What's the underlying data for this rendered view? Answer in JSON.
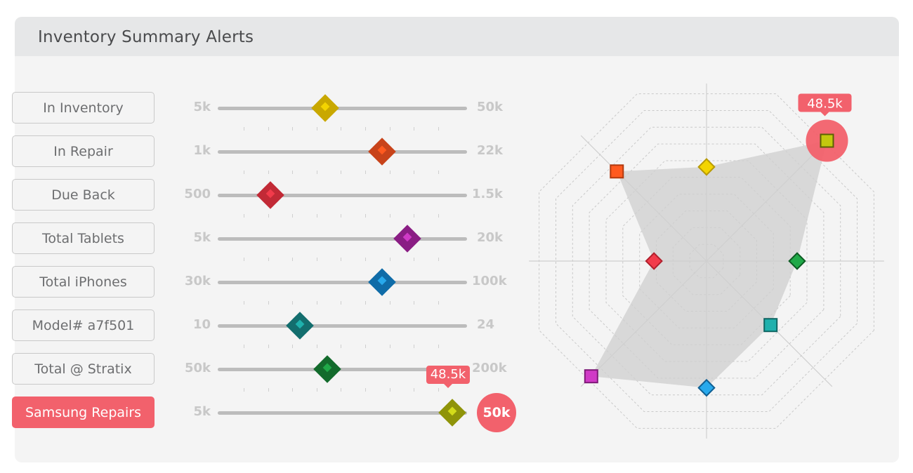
{
  "title": "Inventory Summary Alerts",
  "sliders": [
    {
      "label": "In Inventory",
      "min": "5k",
      "max": "50k",
      "value_fraction": 0.43,
      "color": "#c9a800",
      "inner": "#f3d400",
      "active": false
    },
    {
      "label": "In Repair",
      "min": "1k",
      "max": "22k",
      "value_fraction": 0.66,
      "color": "#c8431a",
      "inner": "#ff5a1f",
      "active": false
    },
    {
      "label": "Due Back",
      "min": "500",
      "max": "1.5k",
      "value_fraction": 0.21,
      "color": "#c22a36",
      "inner": "#f23b4b",
      "active": false
    },
    {
      "label": "Total Tablets",
      "min": "5k",
      "max": "20k",
      "value_fraction": 0.76,
      "color": "#8a1d84",
      "inner": "#d03ac6",
      "active": false
    },
    {
      "label": "Total iPhones",
      "min": "30k",
      "max": "100k",
      "value_fraction": 0.66,
      "color": "#0f6ca8",
      "inner": "#28a9ec",
      "active": false
    },
    {
      "label": "Model# a7f501",
      "min": "10",
      "max": "24",
      "value_fraction": 0.33,
      "color": "#136e6e",
      "inner": "#1fb1ad",
      "active": false
    },
    {
      "label": "Total @ Stratix",
      "min": "50k",
      "max": "200k",
      "value_fraction": 0.44,
      "color": "#136b2c",
      "inner": "#20a948",
      "active": false
    },
    {
      "label": "Samsung Repairs",
      "min": "5k",
      "max": "50k",
      "value_fraction": 0.94,
      "color": "#8f9409",
      "inner": "#d4dc1a",
      "active": true,
      "tooltip": "48.5k",
      "max_badge": "50k"
    }
  ],
  "radar": {
    "tooltip": "48.5k",
    "rings": 10,
    "points": [
      {
        "name": "samsung-repairs",
        "shape": "square",
        "r": 0.94,
        "angle": -45,
        "color": "#c3c80f",
        "border": "#5c6104"
      },
      {
        "name": "in-inventory",
        "shape": "diamond",
        "r": 0.52,
        "angle": -90,
        "color": "#f3d400",
        "border": "#b89a00"
      },
      {
        "name": "in-repair",
        "shape": "square",
        "r": 0.7,
        "angle": -135,
        "color": "#ff5a1f",
        "border": "#b13a0f"
      },
      {
        "name": "due-back",
        "shape": "diamond",
        "r": 0.29,
        "angle": 180,
        "color": "#f23b4b",
        "border": "#b1202d"
      },
      {
        "name": "total-tablets",
        "shape": "square",
        "r": 0.9,
        "angle": 135,
        "color": "#d03ac6",
        "border": "#7e1a78"
      },
      {
        "name": "total-iphones",
        "shape": "diamond",
        "r": 0.7,
        "angle": 90,
        "color": "#28a9ec",
        "border": "#0f5f93"
      },
      {
        "name": "model-a7f501",
        "shape": "square",
        "r": 0.5,
        "angle": 45,
        "color": "#1fb1ad",
        "border": "#0f6562"
      },
      {
        "name": "total-stratix",
        "shape": "diamond",
        "r": 0.5,
        "angle": 0,
        "color": "#20a948",
        "border": "#0d5c23"
      }
    ]
  }
}
